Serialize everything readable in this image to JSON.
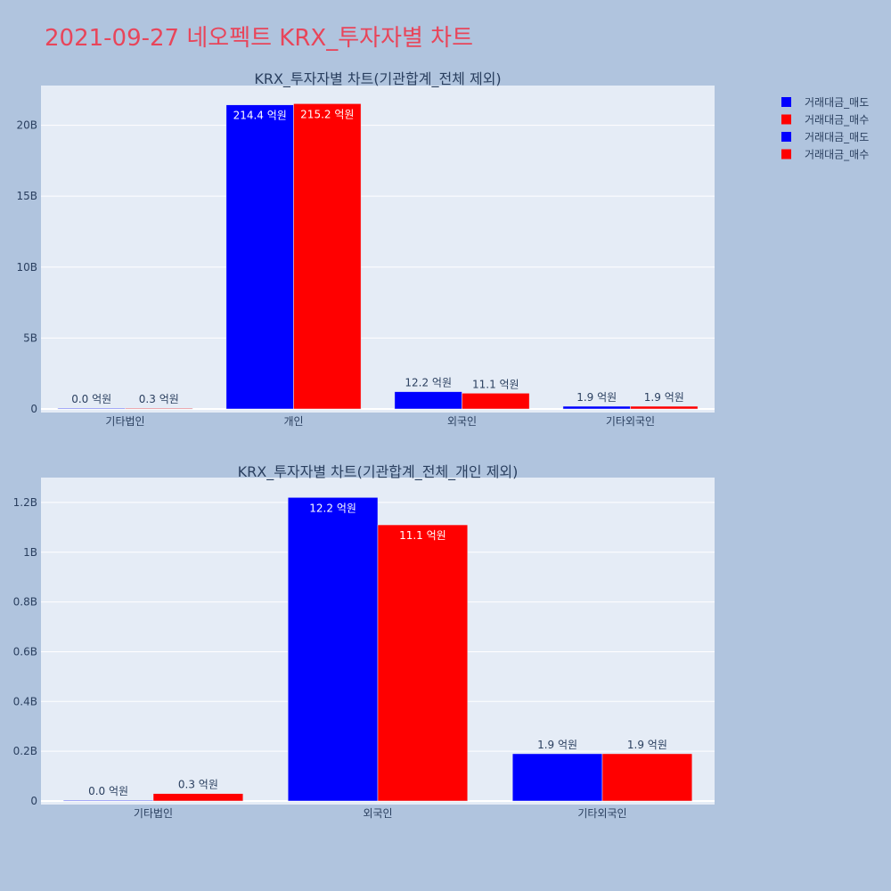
{
  "title": "2021-09-27 네오펙트 KRX_투자자별 차트",
  "legend": [
    {
      "label": "거래대금_매도",
      "color": "#0000ff"
    },
    {
      "label": "거래대금_매수",
      "color": "#ff0000"
    },
    {
      "label": "거래대금_매도",
      "color": "#0000ff"
    },
    {
      "label": "거래대금_매수",
      "color": "#ff0000"
    }
  ],
  "chart_data": [
    {
      "type": "bar",
      "title": "KRX_투자자별 차트(기관합계_전체 제외)",
      "categories": [
        "기타법인",
        "개인",
        "외국인",
        "기타외국인"
      ],
      "series": [
        {
          "name": "거래대금_매도",
          "color": "#0000ff",
          "values": [
            0.0,
            21440000000,
            1220000000,
            190000000
          ],
          "labels": [
            "0.0 억원",
            "214.4 억원",
            "12.2 억원",
            "1.9 억원"
          ]
        },
        {
          "name": "거래대금_매수",
          "color": "#ff0000",
          "values": [
            30000000,
            21520000000,
            1110000000,
            190000000
          ],
          "labels": [
            "0.3 억원",
            "215.2 억원",
            "11.1 억원",
            "1.9 억원"
          ]
        }
      ],
      "yticks": [
        0,
        5000000000,
        10000000000,
        15000000000,
        20000000000
      ],
      "yticklabels": [
        "0",
        "5B",
        "10B",
        "15B",
        "20B"
      ],
      "ylim": [
        0,
        22800000000
      ],
      "grid": true
    },
    {
      "type": "bar",
      "title": "KRX_투자자별 차트(기관합계_전체_개인 제외)",
      "categories": [
        "기타법인",
        "외국인",
        "기타외국인"
      ],
      "series": [
        {
          "name": "거래대금_매도",
          "color": "#0000ff",
          "values": [
            0.0,
            1220000000,
            190000000
          ],
          "labels": [
            "0.0 억원",
            "12.2 억원",
            "1.9 억원"
          ]
        },
        {
          "name": "거래대금_매수",
          "color": "#ff0000",
          "values": [
            30000000,
            1110000000,
            190000000
          ],
          "labels": [
            "0.3 억원",
            "11.1 억원",
            "1.9 억원"
          ]
        }
      ],
      "yticks": [
        0,
        200000000,
        400000000,
        600000000,
        800000000,
        1000000000,
        1200000000
      ],
      "yticklabels": [
        "0",
        "0.2B",
        "0.4B",
        "0.6B",
        "0.8B",
        "1B",
        "1.2B"
      ],
      "ylim": [
        0,
        1300000000
      ],
      "grid": true
    }
  ]
}
